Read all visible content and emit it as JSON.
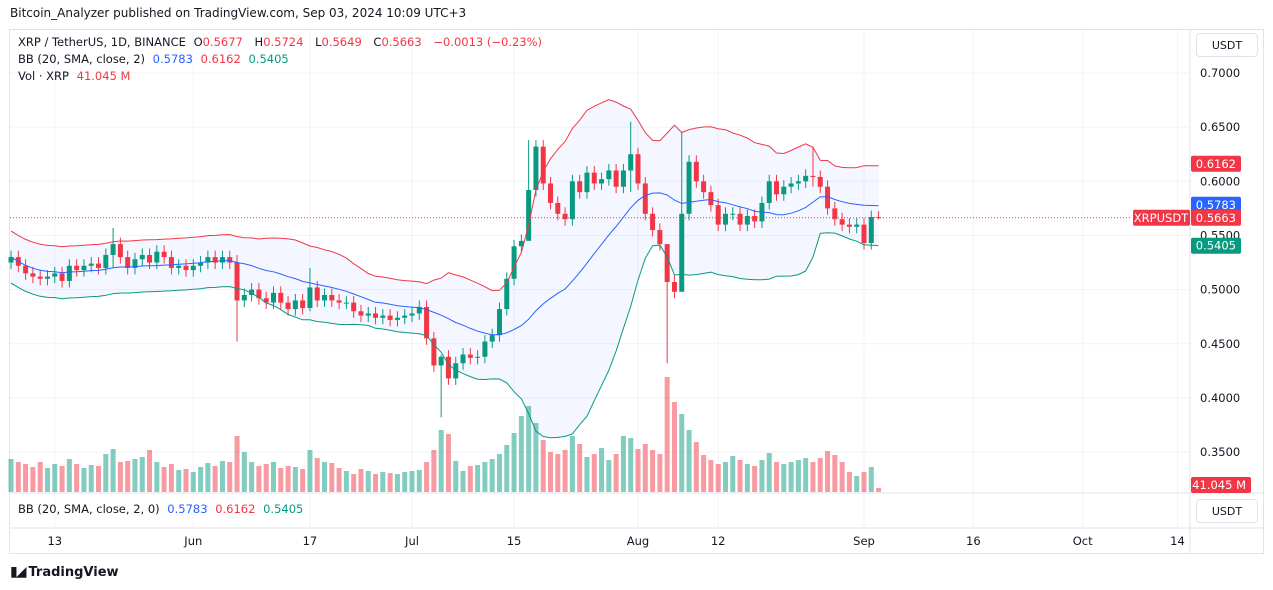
{
  "publisher_line": "Bitcoin_Analyzer published on TradingView.com, Sep 03, 2024 10:09 UTC+3",
  "legend": {
    "symbol": "XRP / TetherUS, 1D, BINANCE",
    "o_label": "O",
    "o": "0.5677",
    "h_label": "H",
    "h": "0.5724",
    "l_label": "L",
    "l": "0.5649",
    "c_label": "C",
    "c": "0.5663",
    "change": "−0.0013 (−0.23%)",
    "bb_label": "BB (20, SMA, close, 2)",
    "bb_mid": "0.5783",
    "bb_upper": "0.6162",
    "bb_lower": "0.5405",
    "vol_label": "Vol · XRP",
    "vol": "41.045 M",
    "bb2_label": "BB (20, SMA, close, 2, 0)"
  },
  "currency_button": "USDT",
  "symbol_tag": "XRPUSDT",
  "price_tags": {
    "upper": "0.6162",
    "mid": "0.5783",
    "last": "0.5663",
    "lower": "0.5405",
    "vol": "41.045 M"
  },
  "footer": {
    "logo_text": "TradingView"
  },
  "colors": {
    "up": "#089981",
    "down": "#f23645",
    "bb_mid": "#2962ff",
    "bb_upper": "#f23645",
    "bb_lower": "#089981",
    "bb_fill": "#2962ff"
  },
  "chart_data": {
    "type": "candlestick",
    "yticks": [
      "0.7000",
      "0.6500",
      "0.6000",
      "0.5500",
      "0.5000",
      "0.4500",
      "0.4000",
      "0.3500"
    ],
    "ylim": [
      0.33,
      0.72
    ],
    "xticks": [
      {
        "date": "2024-05-13",
        "label": "13"
      },
      {
        "date": "2024-06-01",
        "label": "Jun"
      },
      {
        "date": "2024-06-17",
        "label": "17"
      },
      {
        "date": "2024-07-01",
        "label": "Jul"
      },
      {
        "date": "2024-07-15",
        "label": "15"
      },
      {
        "date": "2024-08-01",
        "label": "Aug"
      },
      {
        "date": "2024-08-12",
        "label": "12"
      },
      {
        "date": "2024-09-01",
        "label": "Sep"
      },
      {
        "date": "2024-09-16",
        "label": "16"
      },
      {
        "date": "2024-10-01",
        "label": "Oct"
      },
      {
        "date": "2024-10-14",
        "label": "14"
      }
    ],
    "first_date": "2024-05-07",
    "first_open": 0.525,
    "close": [
      0.53,
      0.522,
      0.515,
      0.512,
      0.51,
      0.512,
      0.515,
      0.508,
      0.522,
      0.518,
      0.522,
      0.524,
      0.52,
      0.532,
      0.542,
      0.53,
      0.52,
      0.528,
      0.532,
      0.525,
      0.535,
      0.53,
      0.52,
      0.522,
      0.518,
      0.522,
      0.525,
      0.53,
      0.525,
      0.53,
      0.525,
      0.49,
      0.495,
      0.5,
      0.492,
      0.488,
      0.497,
      0.488,
      0.482,
      0.49,
      0.483,
      0.502,
      0.49,
      0.495,
      0.49,
      0.488,
      0.488,
      0.48,
      0.476,
      0.478,
      0.474,
      0.476,
      0.472,
      0.474,
      0.476,
      0.478,
      0.484,
      0.455,
      0.43,
      0.438,
      0.418,
      0.432,
      0.44,
      0.437,
      0.438,
      0.452,
      0.458,
      0.482,
      0.51,
      0.54,
      0.545,
      0.592,
      0.632,
      0.598,
      0.58,
      0.57,
      0.565,
      0.6,
      0.59,
      0.608,
      0.598,
      0.602,
      0.61,
      0.595,
      0.61,
      0.625,
      0.598,
      0.57,
      0.555,
      0.542,
      0.507,
      0.498,
      0.57,
      0.618,
      0.6,
      0.59,
      0.578,
      0.56,
      0.57,
      0.57,
      0.56,
      0.568,
      0.563,
      0.58,
      0.6,
      0.588,
      0.595,
      0.598,
      0.6,
      0.605,
      0.604,
      0.595,
      0.575,
      0.565,
      0.56,
      0.558,
      0.56,
      0.543,
      0.567,
      0.5663
    ],
    "wicks": {
      "2024-05-21": [
        0.557,
        0.52
      ],
      "2024-06-07": [
        0.532,
        0.452
      ],
      "2024-06-17": [
        0.52,
        0.48
      ],
      "2024-07-05": [
        0.44,
        0.382
      ],
      "2024-07-17": [
        0.638,
        0.585
      ],
      "2024-07-31": [
        0.655,
        0.59
      ],
      "2024-08-05": [
        0.52,
        0.432
      ],
      "2024-08-07": [
        0.645,
        0.55
      ],
      "2024-08-25": [
        0.632,
        0.595
      ],
      "2024-09-03": [
        0.5724,
        0.5649
      ]
    },
    "volume_millions": [
      330,
      300,
      280,
      250,
      300,
      240,
      280,
      260,
      330,
      280,
      240,
      270,
      260,
      380,
      430,
      300,
      310,
      330,
      350,
      420,
      300,
      250,
      280,
      220,
      230,
      200,
      250,
      290,
      260,
      310,
      300,
      560,
      400,
      300,
      260,
      280,
      300,
      240,
      260,
      250,
      230,
      420,
      340,
      300,
      290,
      240,
      210,
      180,
      230,
      210,
      180,
      200,
      190,
      180,
      200,
      210,
      220,
      300,
      420,
      620,
      580,
      310,
      210,
      260,
      270,
      300,
      330,
      380,
      470,
      590,
      760,
      860,
      690,
      520,
      400,
      380,
      420,
      560,
      480,
      350,
      380,
      440,
      320,
      380,
      560,
      540,
      430,
      480,
      420,
      380,
      1150,
      900,
      780,
      620,
      500,
      370,
      320,
      280,
      300,
      360,
      320,
      280,
      260,
      320,
      390,
      300,
      280,
      300,
      320,
      340,
      300,
      340,
      410,
      370,
      300,
      200,
      160,
      200,
      250,
      41.045
    ],
    "bollinger": {
      "period": 20,
      "stddev": 2,
      "last": {
        "upper": 0.6162,
        "mid": 0.5783,
        "lower": 0.5405
      }
    }
  }
}
